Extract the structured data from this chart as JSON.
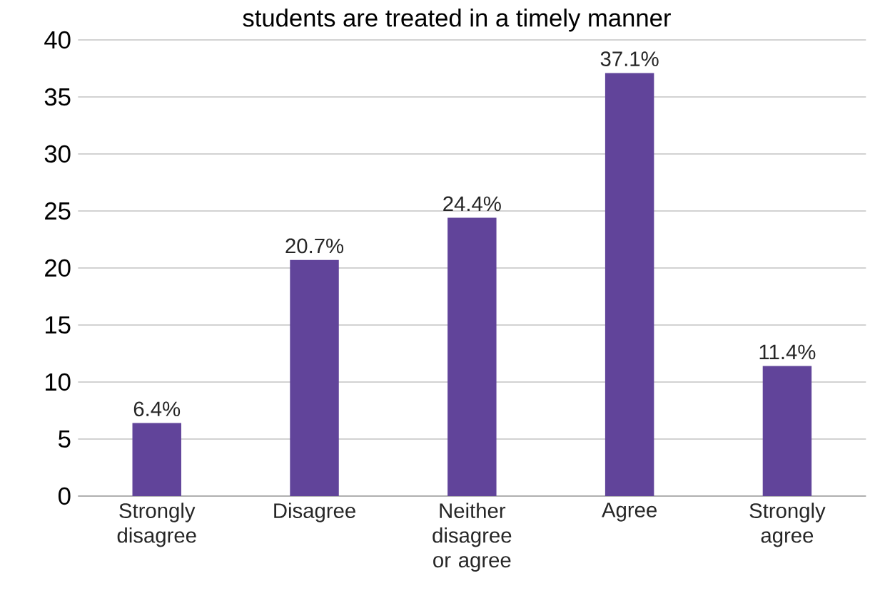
{
  "chart_data": {
    "type": "bar",
    "title": "students are treated in a timely manner",
    "categories": [
      "Strongly disagree",
      "Disagree",
      "Neither disagree or agree",
      "Agree",
      "Strongly agree"
    ],
    "values": [
      6.4,
      20.7,
      24.4,
      37.1,
      11.4
    ],
    "value_labels": [
      "6.4%",
      "20.7%",
      "24.4%",
      "37.1%",
      "11.4%"
    ],
    "color": "#61449a",
    "ylim": [
      0,
      40
    ],
    "yticks": [
      0,
      5,
      10,
      15,
      20,
      25,
      30,
      35,
      40
    ],
    "grid": "y"
  }
}
